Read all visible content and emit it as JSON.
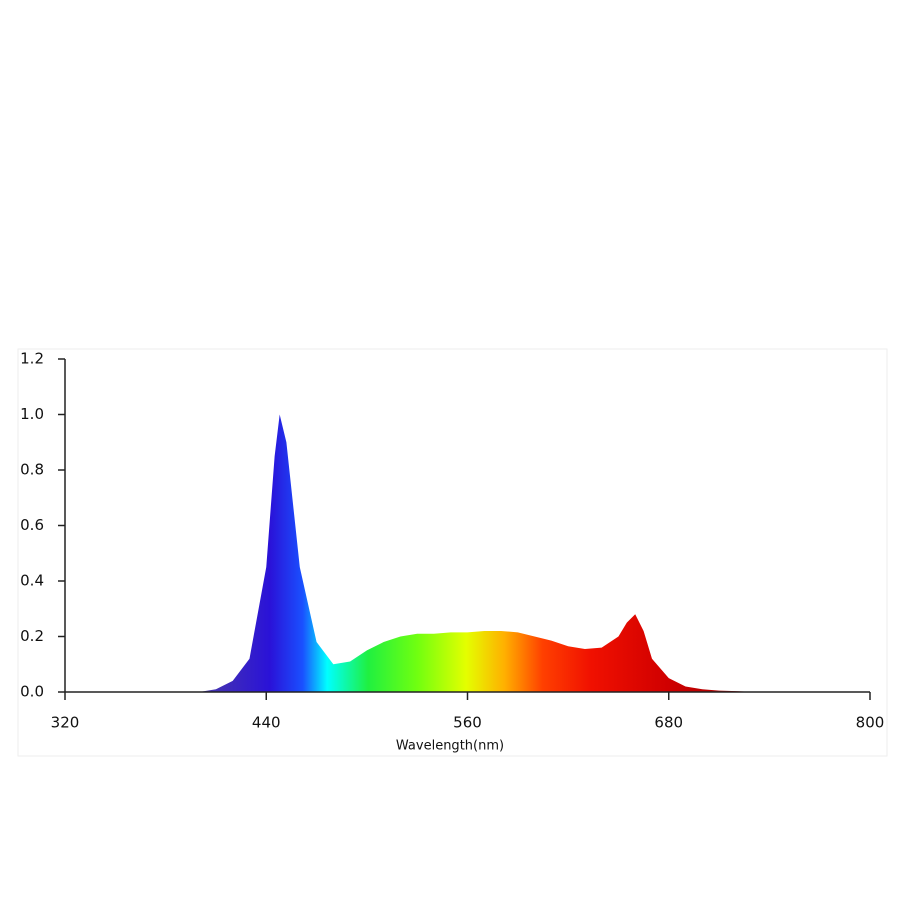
{
  "chart_data": {
    "type": "area",
    "x_label": "Wavelength(nm)",
    "x": [
      400,
      410,
      420,
      430,
      440,
      445,
      448,
      452,
      460,
      470,
      480,
      490,
      500,
      510,
      520,
      530,
      540,
      550,
      560,
      570,
      580,
      590,
      600,
      610,
      620,
      630,
      640,
      650,
      655,
      660,
      665,
      670,
      680,
      690,
      700,
      710,
      720,
      725
    ],
    "values": [
      0,
      0.01,
      0.04,
      0.12,
      0.45,
      0.85,
      1.0,
      0.9,
      0.45,
      0.18,
      0.1,
      0.11,
      0.15,
      0.18,
      0.2,
      0.21,
      0.21,
      0.215,
      0.215,
      0.22,
      0.22,
      0.215,
      0.2,
      0.185,
      0.165,
      0.155,
      0.16,
      0.2,
      0.25,
      0.28,
      0.22,
      0.12,
      0.05,
      0.02,
      0.01,
      0.005,
      0.003,
      0.002
    ],
    "xlim": [
      320,
      800
    ],
    "xticks": [
      320,
      440,
      560,
      680,
      800
    ],
    "ylim": [
      0,
      1.2
    ],
    "yticks": [
      {
        "value": 0,
        "label": "0.0"
      },
      0.2,
      0.4,
      0.6,
      0.8,
      {
        "value": 1,
        "label": "1.0"
      },
      1.2
    ],
    "grid": false
  }
}
